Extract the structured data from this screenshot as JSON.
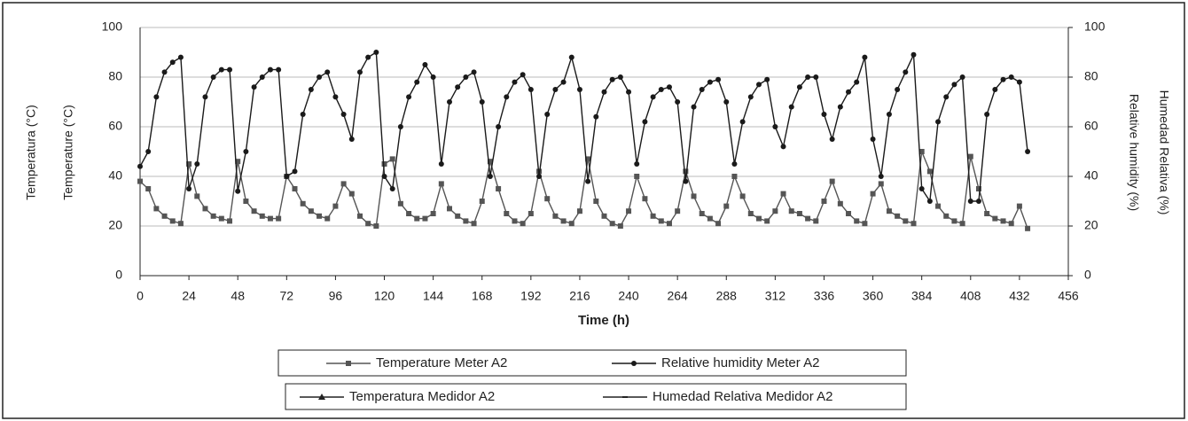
{
  "chart_data": {
    "type": "line",
    "xlabel": "Time (h)",
    "ylabels": [
      "Temperatura (°C)",
      "Temperature (°C)"
    ],
    "y2labels": [
      "Relative humidity (%)",
      "Humedad Relativa (%)"
    ],
    "x": [
      0,
      4,
      8,
      12,
      16,
      20,
      24,
      28,
      32,
      36,
      40,
      44,
      48,
      52,
      56,
      60,
      64,
      68,
      72,
      76,
      80,
      84,
      88,
      92,
      96,
      100,
      104,
      108,
      112,
      116,
      120,
      124,
      128,
      132,
      136,
      140,
      144,
      148,
      152,
      156,
      160,
      164,
      168,
      172,
      176,
      180,
      184,
      188,
      192,
      196,
      200,
      204,
      208,
      212,
      216,
      220,
      224,
      228,
      232,
      236,
      240,
      244,
      248,
      252,
      256,
      260,
      264,
      268,
      272,
      276,
      280,
      284,
      288,
      292,
      296,
      300,
      304,
      308,
      312,
      316,
      320,
      324,
      328,
      332,
      336,
      340,
      344,
      348,
      352,
      356,
      360,
      364,
      368,
      372,
      376,
      380,
      384,
      388,
      392,
      396,
      400,
      404,
      408,
      412,
      416,
      420,
      424,
      428,
      432,
      436
    ],
    "xlim": [
      0,
      456
    ],
    "xticks": [
      0,
      24,
      48,
      72,
      96,
      120,
      144,
      168,
      192,
      216,
      240,
      264,
      288,
      312,
      336,
      360,
      384,
      408,
      432,
      456
    ],
    "ylim": [
      0,
      100
    ],
    "yticks": [
      0,
      20,
      40,
      60,
      80,
      100
    ],
    "y2lim": [
      0,
      100
    ],
    "y2ticks": [
      0,
      20,
      40,
      60,
      80,
      100
    ],
    "grid": true,
    "series": [
      {
        "name": "Temperature Meter A2",
        "color": "#555555",
        "marker": "square",
        "axis": "y",
        "values": [
          38,
          35,
          27,
          24,
          22,
          21,
          45,
          32,
          27,
          24,
          23,
          22,
          46,
          30,
          26,
          24,
          23,
          23,
          40,
          35,
          29,
          26,
          24,
          23,
          28,
          37,
          33,
          24,
          21,
          20,
          45,
          47,
          29,
          25,
          23,
          23,
          25,
          37,
          27,
          24,
          22,
          21,
          30,
          46,
          35,
          25,
          22,
          21,
          25,
          42,
          31,
          24,
          22,
          21,
          26,
          47,
          30,
          24,
          21,
          20,
          26,
          40,
          31,
          24,
          22,
          21,
          26,
          42,
          32,
          25,
          23,
          21,
          28,
          40,
          32,
          25,
          23,
          22,
          26,
          33,
          26,
          25,
          23,
          22,
          30,
          38,
          29,
          25,
          22,
          21,
          33,
          37,
          26,
          24,
          22,
          21,
          50,
          42,
          28,
          24,
          22,
          21,
          48,
          35,
          25,
          23,
          22,
          21,
          28,
          19
        ]
      },
      {
        "name": "Relative humidity Meter A2",
        "color": "#1a1a1a",
        "marker": "circle",
        "axis": "y2",
        "values": [
          44,
          50,
          72,
          82,
          86,
          88,
          35,
          45,
          72,
          80,
          83,
          83,
          34,
          50,
          76,
          80,
          83,
          83,
          40,
          42,
          65,
          75,
          80,
          82,
          72,
          65,
          55,
          82,
          88,
          90,
          40,
          35,
          60,
          72,
          78,
          85,
          80,
          45,
          70,
          76,
          80,
          82,
          70,
          40,
          60,
          72,
          78,
          81,
          75,
          40,
          65,
          75,
          78,
          88,
          75,
          38,
          64,
          74,
          79,
          80,
          74,
          45,
          62,
          72,
          75,
          76,
          70,
          38,
          68,
          75,
          78,
          79,
          70,
          45,
          62,
          72,
          77,
          79,
          60,
          52,
          68,
          76,
          80,
          80,
          65,
          55,
          68,
          74,
          78,
          88,
          55,
          40,
          65,
          75,
          82,
          89,
          35,
          30,
          62,
          72,
          77,
          80,
          30,
          30,
          65,
          75,
          79,
          80,
          78,
          50
        ]
      }
    ],
    "extra_legend": [
      {
        "name": "Temperatura Medidor A2",
        "marker": "triangle"
      },
      {
        "name": "Humedad Relativa Medidor A2",
        "marker": "dash"
      }
    ]
  }
}
